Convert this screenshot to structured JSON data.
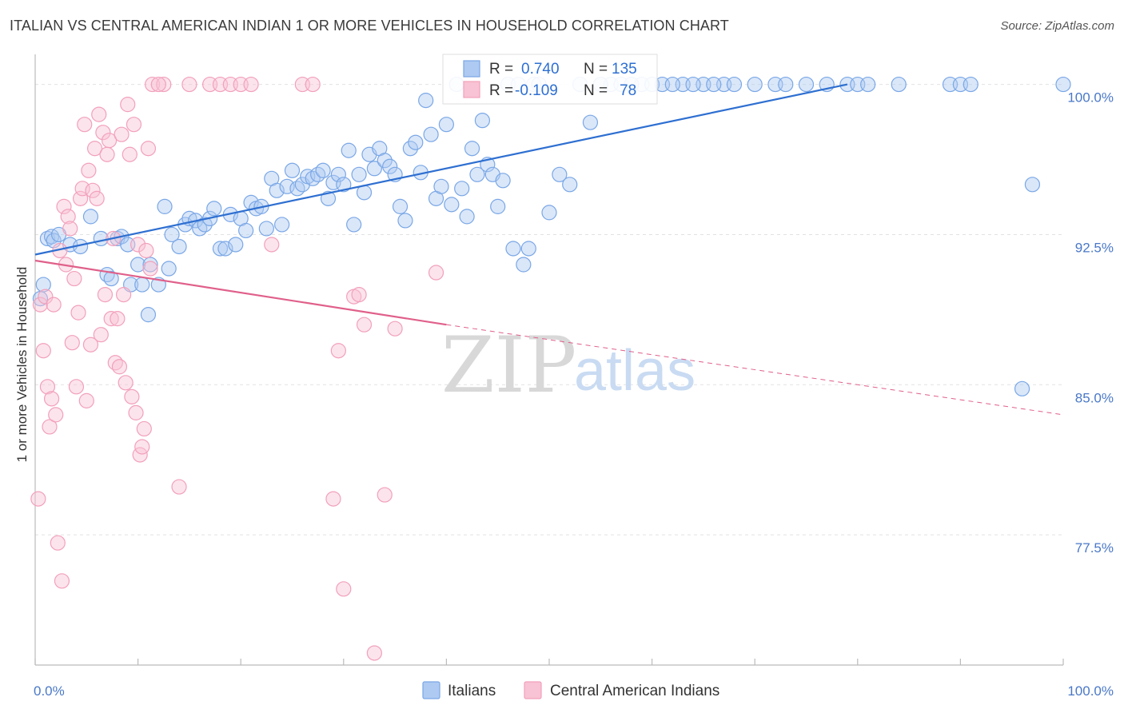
{
  "header": {
    "title": "ITALIAN VS CENTRAL AMERICAN INDIAN 1 OR MORE VEHICLES IN HOUSEHOLD CORRELATION CHART",
    "source": "Source: ZipAtlas.com"
  },
  "watermark": {
    "zip": "ZIP",
    "atlas": "atlas"
  },
  "legend": {
    "r_label": "R =",
    "n_label": "N =",
    "rows": [
      {
        "r": "0.740",
        "n": "135"
      },
      {
        "r": "-0.109",
        "n": "78"
      }
    ]
  },
  "chart_data": {
    "type": "scatter",
    "title": "ITALIAN VS CENTRAL AMERICAN INDIAN 1 OR MORE VEHICLES IN HOUSEHOLD CORRELATION CHART",
    "ylabel": "1 or more Vehicles in Household",
    "xlabel": "",
    "xlim": [
      0,
      100
    ],
    "ylim": [
      71,
      101.5
    ],
    "x_ticks": [
      "0.0%",
      "100.0%"
    ],
    "y_ticks": [
      {
        "value": 100,
        "label": "100.0%"
      },
      {
        "value": 92.5,
        "label": "92.5%"
      },
      {
        "value": 85,
        "label": "85.0%"
      },
      {
        "value": 77.5,
        "label": "77.5%"
      }
    ],
    "grid": true,
    "legend_position": "top-center",
    "colors": {
      "italians": "#7aa7e6",
      "italians_line": "#2e6fd1",
      "cai": "#f2a0bb",
      "cai_line": "#e0608a"
    },
    "series": [
      {
        "name": "Italians",
        "r": 0.74,
        "n": 135,
        "trend": {
          "x0": 0,
          "y0": 91.5,
          "x1": 79,
          "y1": 100.0
        },
        "points": [
          [
            0.5,
            89.3
          ],
          [
            0.8,
            90.0
          ],
          [
            1.2,
            92.3
          ],
          [
            1.6,
            92.4
          ],
          [
            1.8,
            92.2
          ],
          [
            2.3,
            92.5
          ],
          [
            3.4,
            92.0
          ],
          [
            4.4,
            91.9
          ],
          [
            5.4,
            93.4
          ],
          [
            6.4,
            92.3
          ],
          [
            7,
            90.5
          ],
          [
            7.4,
            90.3
          ],
          [
            8,
            92.3
          ],
          [
            8.4,
            92.4
          ],
          [
            9,
            92.0
          ],
          [
            9.3,
            90.0
          ],
          [
            10,
            91.0
          ],
          [
            10.4,
            90.0
          ],
          [
            11,
            88.5
          ],
          [
            11.2,
            91.0
          ],
          [
            12,
            90.0
          ],
          [
            12.6,
            93.9
          ],
          [
            13,
            90.8
          ],
          [
            13.3,
            92.5
          ],
          [
            14,
            91.9
          ],
          [
            14.6,
            93.0
          ],
          [
            15,
            93.3
          ],
          [
            15.6,
            93.2
          ],
          [
            16,
            92.8
          ],
          [
            16.5,
            93.0
          ],
          [
            17,
            93.3
          ],
          [
            17.4,
            93.8
          ],
          [
            18,
            91.8
          ],
          [
            18.5,
            91.8
          ],
          [
            19,
            93.5
          ],
          [
            19.5,
            92.0
          ],
          [
            20,
            93.3
          ],
          [
            20.5,
            92.7
          ],
          [
            21,
            94.1
          ],
          [
            21.5,
            93.8
          ],
          [
            22,
            93.9
          ],
          [
            22.5,
            92.8
          ],
          [
            23,
            95.3
          ],
          [
            23.5,
            94.7
          ],
          [
            24,
            93.0
          ],
          [
            24.5,
            94.9
          ],
          [
            25,
            95.7
          ],
          [
            25.5,
            94.8
          ],
          [
            26,
            95.0
          ],
          [
            26.5,
            95.4
          ],
          [
            27,
            95.3
          ],
          [
            27.5,
            95.5
          ],
          [
            28,
            95.7
          ],
          [
            28.5,
            94.3
          ],
          [
            29,
            95.1
          ],
          [
            29.5,
            95.5
          ],
          [
            30,
            95.0
          ],
          [
            30.5,
            96.7
          ],
          [
            31,
            93.0
          ],
          [
            31.5,
            95.5
          ],
          [
            32,
            94.6
          ],
          [
            32.5,
            96.5
          ],
          [
            33,
            95.8
          ],
          [
            33.5,
            96.8
          ],
          [
            34,
            96.2
          ],
          [
            34.5,
            95.9
          ],
          [
            35,
            95.5
          ],
          [
            35.5,
            93.9
          ],
          [
            36,
            93.2
          ],
          [
            36.5,
            96.8
          ],
          [
            37,
            97.1
          ],
          [
            37.5,
            95.6
          ],
          [
            38,
            99.2
          ],
          [
            38.5,
            97.5
          ],
          [
            39,
            94.3
          ],
          [
            39.5,
            94.9
          ],
          [
            40,
            98.0
          ],
          [
            40.5,
            94.0
          ],
          [
            41,
            100.0
          ],
          [
            41.5,
            94.8
          ],
          [
            42,
            93.4
          ],
          [
            42.5,
            96.8
          ],
          [
            43,
            95.5
          ],
          [
            43.5,
            98.2
          ],
          [
            44,
            96.0
          ],
          [
            44.5,
            95.5
          ],
          [
            45,
            93.9
          ],
          [
            45.5,
            95.2
          ],
          [
            46,
            100.0
          ],
          [
            46.5,
            91.8
          ],
          [
            47,
            100.0
          ],
          [
            47.5,
            91.0
          ],
          [
            48,
            91.8
          ],
          [
            48.5,
            100.0
          ],
          [
            49,
            100.0
          ],
          [
            50,
            93.6
          ],
          [
            51,
            95.5
          ],
          [
            52,
            95.0
          ],
          [
            53,
            100.0
          ],
          [
            54,
            98.1
          ],
          [
            55,
            100.0
          ],
          [
            56,
            100.0
          ],
          [
            57,
            100.0
          ],
          [
            58,
            100.0
          ],
          [
            59,
            100.0
          ],
          [
            60,
            100.0
          ],
          [
            61,
            100.0
          ],
          [
            63,
            100.0
          ],
          [
            65,
            100.0
          ],
          [
            67,
            100.0
          ],
          [
            70,
            100.0
          ],
          [
            72,
            100.0
          ],
          [
            73,
            100.0
          ],
          [
            75,
            100.0
          ],
          [
            77,
            100.0
          ],
          [
            79,
            100.0
          ],
          [
            80,
            100.0
          ],
          [
            81,
            100.0
          ],
          [
            84,
            100.0
          ],
          [
            89,
            100.0
          ],
          [
            90,
            100.0
          ],
          [
            91,
            100.0
          ],
          [
            96,
            84.8
          ],
          [
            97,
            95.0
          ],
          [
            100,
            100.0
          ],
          [
            55,
            100.0
          ],
          [
            58,
            100.0
          ],
          [
            62,
            100.0
          ],
          [
            64,
            100.0
          ],
          [
            66,
            100.0
          ],
          [
            68,
            100.0
          ]
        ]
      },
      {
        "name": "Central American Indians",
        "r": -0.109,
        "n": 78,
        "trend": {
          "x0": 0,
          "y0": 91.2,
          "x1": 40,
          "y1": 88.0,
          "x_dash_end": 100,
          "y_dash_end": 83.5
        },
        "points": [
          [
            0.3,
            79.3
          ],
          [
            0.5,
            89.0
          ],
          [
            0.8,
            86.7
          ],
          [
            1,
            89.4
          ],
          [
            1.2,
            84.9
          ],
          [
            1.4,
            82.9
          ],
          [
            1.6,
            84.3
          ],
          [
            1.8,
            89.0
          ],
          [
            2,
            83.5
          ],
          [
            2.2,
            77.1
          ],
          [
            2.4,
            91.7
          ],
          [
            2.6,
            75.2
          ],
          [
            2.8,
            93.9
          ],
          [
            3,
            91.0
          ],
          [
            3.2,
            93.4
          ],
          [
            3.4,
            92.8
          ],
          [
            3.6,
            87.1
          ],
          [
            3.8,
            90.3
          ],
          [
            4,
            84.9
          ],
          [
            4.2,
            88.6
          ],
          [
            4.4,
            94.3
          ],
          [
            4.6,
            94.8
          ],
          [
            4.8,
            98.0
          ],
          [
            5,
            84.2
          ],
          [
            5.2,
            95.7
          ],
          [
            5.4,
            87.0
          ],
          [
            5.6,
            94.7
          ],
          [
            5.8,
            96.8
          ],
          [
            6,
            94.3
          ],
          [
            6.2,
            98.5
          ],
          [
            6.4,
            87.5
          ],
          [
            6.6,
            97.6
          ],
          [
            6.8,
            89.5
          ],
          [
            7,
            96.5
          ],
          [
            7.2,
            97.2
          ],
          [
            7.4,
            88.3
          ],
          [
            7.6,
            92.3
          ],
          [
            7.8,
            86.1
          ],
          [
            8,
            88.3
          ],
          [
            8.2,
            85.9
          ],
          [
            8.4,
            97.5
          ],
          [
            8.6,
            89.5
          ],
          [
            8.8,
            85.1
          ],
          [
            9,
            99.0
          ],
          [
            9.2,
            96.5
          ],
          [
            9.4,
            84.4
          ],
          [
            9.6,
            98.0
          ],
          [
            9.8,
            83.6
          ],
          [
            10,
            92.0
          ],
          [
            10.2,
            81.5
          ],
          [
            10.4,
            81.9
          ],
          [
            10.6,
            82.8
          ],
          [
            10.8,
            91.7
          ],
          [
            11,
            96.8
          ],
          [
            11.2,
            90.8
          ],
          [
            11.4,
            100.0
          ],
          [
            12.5,
            100.0
          ],
          [
            14,
            79.9
          ],
          [
            15,
            100.0
          ],
          [
            17,
            100.0
          ],
          [
            18,
            100.0
          ],
          [
            19,
            100.0
          ],
          [
            20,
            100.0
          ],
          [
            23,
            92.0
          ],
          [
            26,
            100.0
          ],
          [
            27,
            100.0
          ],
          [
            29,
            79.3
          ],
          [
            29.5,
            86.7
          ],
          [
            30,
            74.8
          ],
          [
            31,
            89.4
          ],
          [
            31.5,
            89.5
          ],
          [
            32,
            88.0
          ],
          [
            33,
            71.6
          ],
          [
            34,
            79.5
          ],
          [
            35,
            87.8
          ],
          [
            39,
            90.6
          ],
          [
            12,
            100.0
          ],
          [
            21,
            100.0
          ]
        ]
      }
    ]
  },
  "bottom_legend": {
    "items": [
      {
        "label": "Italians"
      },
      {
        "label": "Central American Indians"
      }
    ]
  }
}
